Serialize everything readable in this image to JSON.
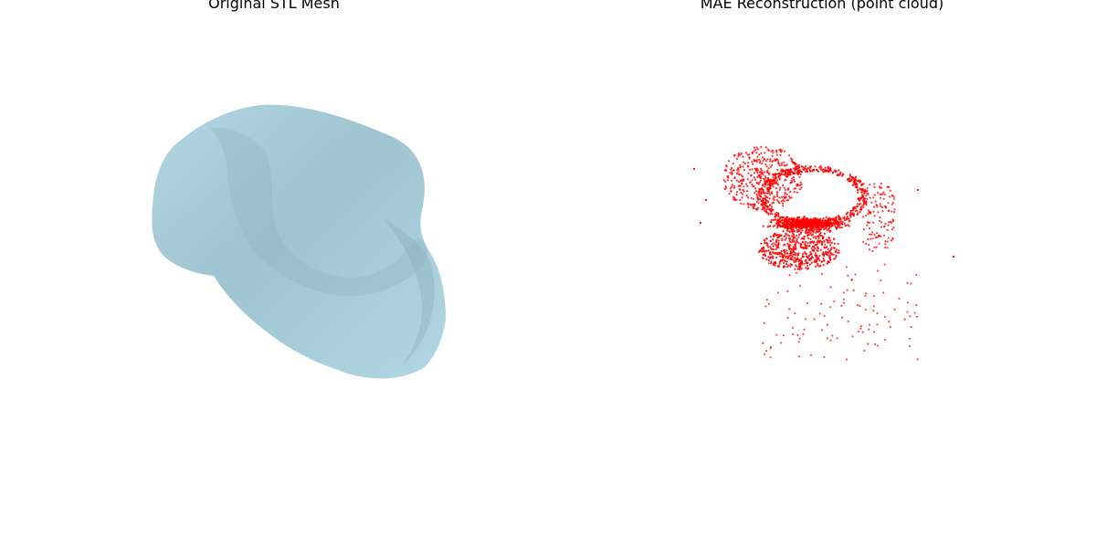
{
  "figure": {
    "left_title": "Original STL Mesh",
    "right_title": "MAE Reconstruction (point cloud)"
  },
  "colors": {
    "mesh_fill": "#add8e6",
    "mesh_shadow": "#8fb8c4",
    "points": "#ff0000",
    "background": "#ffffff"
  }
}
